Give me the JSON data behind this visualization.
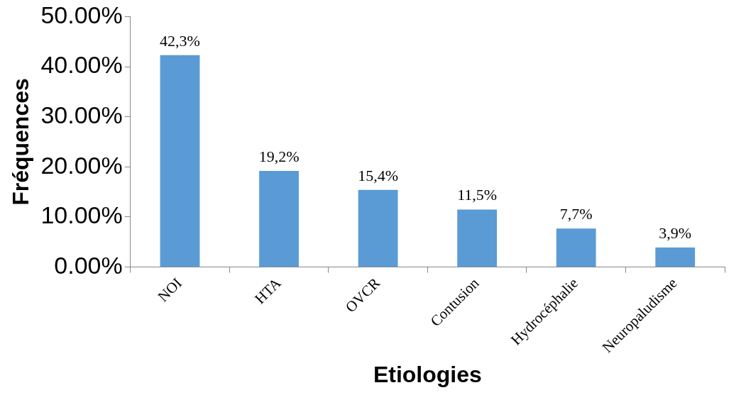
{
  "chart_data": {
    "type": "bar",
    "xlabel": "Etiologies",
    "ylabel": "Fréquences",
    "categories": [
      "NOI",
      "HTA",
      "OVCR",
      "Contusion",
      "Hydrocéphalie",
      "Neuropaludisme"
    ],
    "values": [
      42.3,
      19.2,
      15.4,
      11.5,
      7.7,
      3.9
    ],
    "value_labels": [
      "42,3%",
      "19,2%",
      "15,4%",
      "11,5%",
      "7,7%",
      "3,9%"
    ],
    "color": "#5b9bd5",
    "ylim": [
      0,
      50
    ],
    "yticks": [
      {
        "value": 0,
        "label": "0.00%"
      },
      {
        "value": 10,
        "label": "10.00%"
      },
      {
        "value": 20,
        "label": "20.00%"
      },
      {
        "value": 30,
        "label": "30.00%"
      },
      {
        "value": 40,
        "label": "40.00%"
      },
      {
        "value": 50,
        "label": "50.00%"
      }
    ],
    "grid": false,
    "legend": false
  }
}
